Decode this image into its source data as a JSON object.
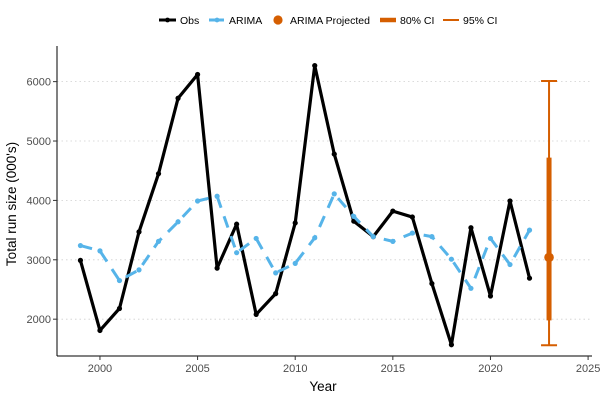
{
  "chart_data": {
    "type": "line",
    "title": "",
    "xlabel": "Year",
    "ylabel": "Total run size (000's)",
    "xlim": [
      1997.8,
      2025.2
    ],
    "ylim": [
      1380,
      6600
    ],
    "x_ticks": [
      2000,
      2005,
      2010,
      2015,
      2020,
      2025
    ],
    "y_ticks": [
      2000,
      3000,
      4000,
      5000,
      6000
    ],
    "grid": "horizontal dotted",
    "legend_position": "top",
    "legend": [
      {
        "label": "Obs",
        "kind": "line-point"
      },
      {
        "label": "ARIMA",
        "kind": "dashed-point"
      },
      {
        "label": "ARIMA Projected",
        "kind": "point"
      },
      {
        "label": "80% CI",
        "kind": "thick-bar"
      },
      {
        "label": "95% CI",
        "kind": "thin-bar"
      }
    ],
    "series": [
      {
        "name": "Obs",
        "color": "#000000",
        "style": "solid",
        "x": [
          1999,
          2000,
          2001,
          2002,
          2003,
          2004,
          2005,
          2006,
          2007,
          2008,
          2009,
          2010,
          2011,
          2012,
          2013,
          2014,
          2015,
          2016,
          2017,
          2018,
          2019,
          2020,
          2021,
          2022
        ],
        "y": [
          2990,
          1810,
          2180,
          3470,
          4450,
          5720,
          6120,
          2860,
          3600,
          2080,
          2430,
          3620,
          6270,
          4780,
          3650,
          3390,
          3820,
          3720,
          2600,
          1570,
          3540,
          2390,
          3990,
          2690
        ]
      },
      {
        "name": "ARIMA",
        "color": "#56B4E9",
        "style": "dashed",
        "x": [
          1999,
          2000,
          2001,
          2002,
          2003,
          2004,
          2005,
          2006,
          2007,
          2008,
          2009,
          2010,
          2011,
          2012,
          2013,
          2014,
          2015,
          2016,
          2017,
          2018,
          2019,
          2020,
          2021,
          2022
        ],
        "y": [
          3240,
          3150,
          2650,
          2830,
          3310,
          3640,
          3990,
          4070,
          3120,
          3360,
          2780,
          2940,
          3370,
          4110,
          3730,
          3390,
          3310,
          3450,
          3390,
          3010,
          2520,
          3360,
          2920,
          3500
        ]
      }
    ],
    "projection": {
      "name": "ARIMA Projected",
      "color": "#D55E00",
      "x": 2023,
      "y": 3040,
      "ci80": [
        1980,
        4720
      ],
      "ci95": [
        1560,
        6010
      ]
    }
  }
}
